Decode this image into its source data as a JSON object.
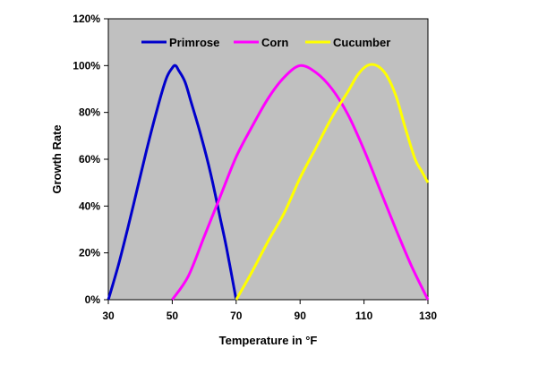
{
  "chart_data": {
    "type": "line",
    "title": "",
    "xlabel": "Temperature in °F",
    "ylabel": "Growth Rate",
    "xlim": [
      30,
      130
    ],
    "ylim": [
      0,
      120
    ],
    "x_ticks": [
      "30",
      "50",
      "70",
      "90",
      "110",
      "130"
    ],
    "y_ticks": [
      "0%",
      "20%",
      "40%",
      "60%",
      "80%",
      "100%",
      "120%"
    ],
    "grid": false,
    "legend_position": "top",
    "plot_background": "#c0c0c0",
    "series": [
      {
        "name": "Primrose",
        "color": "#0000cc",
        "points": [
          [
            30,
            0
          ],
          [
            33,
            14
          ],
          [
            36,
            30
          ],
          [
            39,
            47
          ],
          [
            42,
            64
          ],
          [
            45,
            80
          ],
          [
            48,
            94
          ],
          [
            50,
            99
          ],
          [
            51,
            100
          ],
          [
            52,
            98
          ],
          [
            54,
            93
          ],
          [
            56,
            84
          ],
          [
            59,
            70
          ],
          [
            62,
            54
          ],
          [
            65,
            35
          ],
          [
            67,
            22
          ],
          [
            70,
            0
          ]
        ]
      },
      {
        "name": "Corn",
        "color": "#ff00ff",
        "points": [
          [
            50,
            0
          ],
          [
            55,
            10
          ],
          [
            60,
            27
          ],
          [
            65,
            44
          ],
          [
            70,
            61
          ],
          [
            75,
            74
          ],
          [
            80,
            86
          ],
          [
            85,
            95
          ],
          [
            90,
            100
          ],
          [
            95,
            97
          ],
          [
            100,
            90
          ],
          [
            105,
            79
          ],
          [
            110,
            64
          ],
          [
            115,
            47
          ],
          [
            120,
            30
          ],
          [
            125,
            14
          ],
          [
            130,
            0
          ]
        ]
      },
      {
        "name": "Cucumber",
        "color": "#ffff00",
        "points": [
          [
            70,
            0
          ],
          [
            75,
            12
          ],
          [
            80,
            25
          ],
          [
            85,
            37
          ],
          [
            90,
            52
          ],
          [
            95,
            65
          ],
          [
            100,
            78
          ],
          [
            105,
            89
          ],
          [
            108,
            96
          ],
          [
            111,
            100
          ],
          [
            114,
            100
          ],
          [
            117,
            96
          ],
          [
            120,
            87
          ],
          [
            123,
            73
          ],
          [
            126,
            60
          ],
          [
            128,
            55
          ],
          [
            130,
            50
          ]
        ]
      }
    ]
  }
}
